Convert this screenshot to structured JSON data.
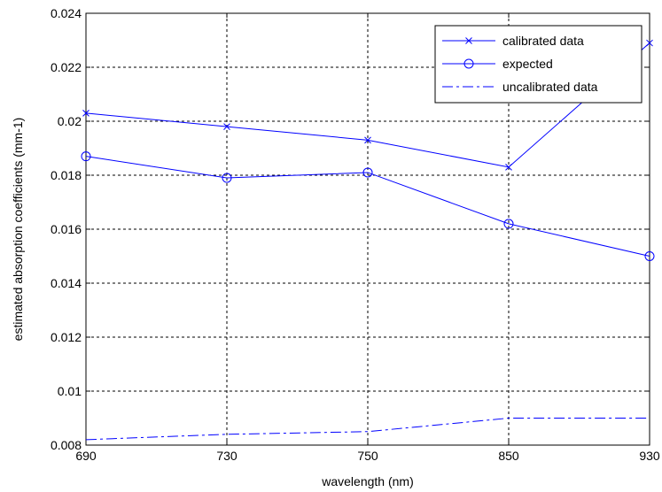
{
  "chart_data": {
    "type": "line",
    "xlabel": "wavelength (nm)",
    "ylabel": "estimated absorption coefficients (mm-1)",
    "categories": [
      "690",
      "730",
      "750",
      "850",
      "930"
    ],
    "ylim": [
      0.008,
      0.024
    ],
    "yticks": [
      "0.008",
      "0.01",
      "0.012",
      "0.014",
      "0.016",
      "0.018",
      "0.02",
      "0.022",
      "0.024"
    ],
    "grid": true,
    "legend_position": "top-right",
    "series": [
      {
        "name": "calibrated data",
        "marker": "x",
        "style": "solid",
        "values": [
          0.0203,
          0.0198,
          0.0193,
          0.0183,
          0.0229
        ]
      },
      {
        "name": "expected",
        "marker": "o",
        "style": "solid",
        "values": [
          0.0187,
          0.0179,
          0.0181,
          0.0162,
          0.015
        ]
      },
      {
        "name": "uncalibrated data",
        "marker": "none",
        "style": "dashdot",
        "values": [
          0.0082,
          0.0084,
          0.0085,
          0.009,
          0.009
        ]
      }
    ],
    "line_color": "#0000ff"
  }
}
